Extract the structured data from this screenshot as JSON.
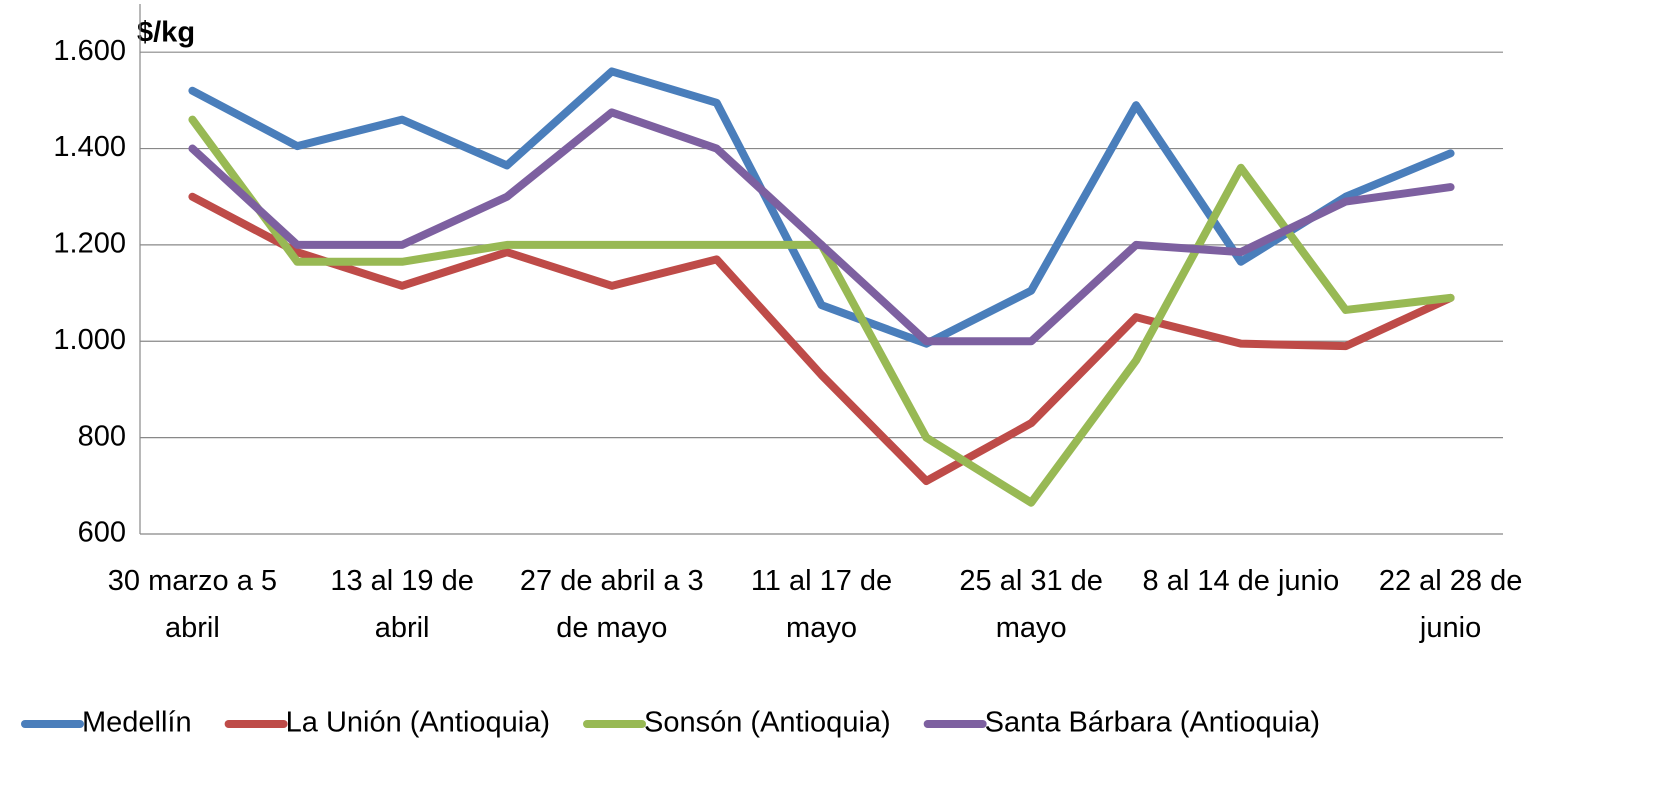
{
  "chart_data": {
    "type": "line",
    "y_label": "$/kg",
    "categories": [
      "30 marzo a 5 abril",
      null,
      "13 al 19 de abril",
      null,
      "27 de abril a 3 de mayo",
      null,
      "11 al 17 de mayo",
      null,
      "25 al 31 de mayo",
      null,
      "8 al 14 de junio",
      null,
      "22 al 28 de junio"
    ],
    "series": [
      {
        "name": "Medellín",
        "color": "#4a7ebb",
        "values": [
          1520,
          1405,
          1460,
          1365,
          1560,
          1495,
          1075,
          995,
          1105,
          1490,
          1165,
          1300,
          1390
        ]
      },
      {
        "name": "La Unión (Antioquia)",
        "color": "#be4b48",
        "values": [
          1300,
          1185,
          1115,
          1185,
          1115,
          1170,
          930,
          710,
          830,
          1050,
          995,
          990,
          1090
        ]
      },
      {
        "name": "Sonsón (Antioquia)",
        "color": "#98b954",
        "values": [
          1460,
          1165,
          1165,
          1200,
          1200,
          1200,
          1200,
          800,
          665,
          960,
          1360,
          1065,
          1090
        ]
      },
      {
        "name": "Santa Bárbara (Antioquia)",
        "color": "#7d60a0",
        "values": [
          1400,
          1200,
          1200,
          1300,
          1475,
          1400,
          1200,
          1000,
          1000,
          1200,
          1185,
          1290,
          1320
        ]
      }
    ],
    "ylim": [
      600,
      1700
    ],
    "yticks": [
      {
        "value": 600,
        "label": "600"
      },
      {
        "value": 800,
        "label": "800"
      },
      {
        "value": 1000,
        "label": "1.000"
      },
      {
        "value": 1200,
        "label": "1.200"
      },
      {
        "value": 1400,
        "label": "1.400"
      },
      {
        "value": 1600,
        "label": "1.600"
      }
    ],
    "grid": true,
    "legend": "bottom"
  }
}
